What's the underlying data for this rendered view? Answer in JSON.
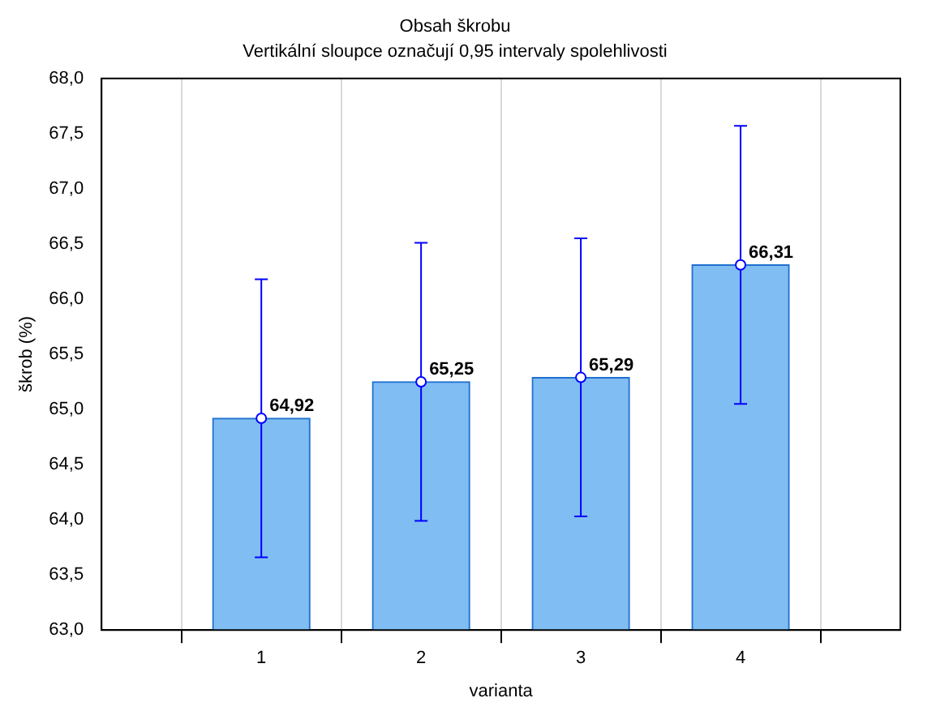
{
  "chart_data": {
    "type": "bar",
    "title": "Obsah škrobu",
    "subtitle": "Vertikální sloupce označují 0,95 intervaly spolehlivosti",
    "xlabel": "varianta",
    "ylabel": "škrob (%)",
    "x": [
      1,
      2,
      3,
      4
    ],
    "xlim": [
      0,
      5
    ],
    "xticks": [
      1,
      2,
      3,
      4
    ],
    "series": [
      {
        "color": "#80bdf2",
        "values": [
          64.92,
          65.25,
          65.29,
          66.31
        ]
      },
      {
        "type": "scatter",
        "color": "#0000ff",
        "marker": "circle",
        "values": [
          64.92,
          65.25,
          65.29,
          66.31
        ],
        "errors": [
          1.26,
          1.26,
          1.26,
          1.26
        ],
        "value_labels": [
          "64,92",
          "65,25",
          "65,29",
          "66,31"
        ]
      }
    ],
    "ylim": [
      63,
      68
    ],
    "yticks": [
      {
        "value": 63,
        "label": "63,0"
      },
      {
        "value": 63.5,
        "label": "63,5"
      },
      {
        "value": 64,
        "label": "64,0"
      },
      {
        "value": 64.5,
        "label": "64,5"
      },
      {
        "value": 65,
        "label": "65,0"
      },
      {
        "value": 65.5,
        "label": "65,5"
      },
      {
        "value": 66,
        "label": "66,0"
      },
      {
        "value": 66.5,
        "label": "66,5"
      },
      {
        "value": 67,
        "label": "67,0"
      },
      {
        "value": 67.5,
        "label": "67,5"
      },
      {
        "value": 68,
        "label": "68,0"
      }
    ],
    "grid": "x",
    "legend": false
  }
}
